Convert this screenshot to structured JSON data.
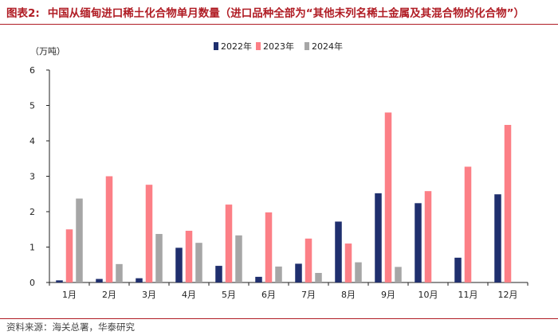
{
  "header": {
    "figure_label": "图表2:",
    "title": "中国从缅甸进口稀土化合物单月数量（进口品种全部为“其他未列名稀土金属及其混合物的化合物”）"
  },
  "footer": {
    "source": "资料来源：海关总署，华泰研究"
  },
  "chart_data": {
    "type": "bar",
    "ylabel": "（万吨）",
    "ylim": [
      0,
      6
    ],
    "yticks": [
      0,
      1,
      2,
      3,
      4,
      5,
      6
    ],
    "grid": false,
    "legend_placement": "top-center",
    "categories": [
      "1月",
      "2月",
      "3月",
      "4月",
      "5月",
      "6月",
      "7月",
      "8月",
      "9月",
      "10月",
      "11月",
      "12月"
    ],
    "series": [
      {
        "name": "2022年",
        "color": "#1f2f6e",
        "values": [
          0.06,
          0.1,
          0.12,
          0.98,
          0.47,
          0.16,
          0.53,
          1.72,
          2.52,
          2.24,
          0.7,
          2.49
        ]
      },
      {
        "name": "2023年",
        "color": "#fc7f86",
        "values": [
          1.5,
          3.0,
          2.76,
          1.46,
          2.2,
          1.98,
          1.24,
          1.1,
          4.8,
          2.58,
          3.27,
          4.45
        ]
      },
      {
        "name": "2024年",
        "color": "#a6a6a6",
        "values": [
          2.37,
          0.52,
          1.37,
          1.12,
          1.33,
          0.45,
          0.27,
          0.57,
          0.44,
          null,
          null,
          null
        ]
      }
    ]
  }
}
